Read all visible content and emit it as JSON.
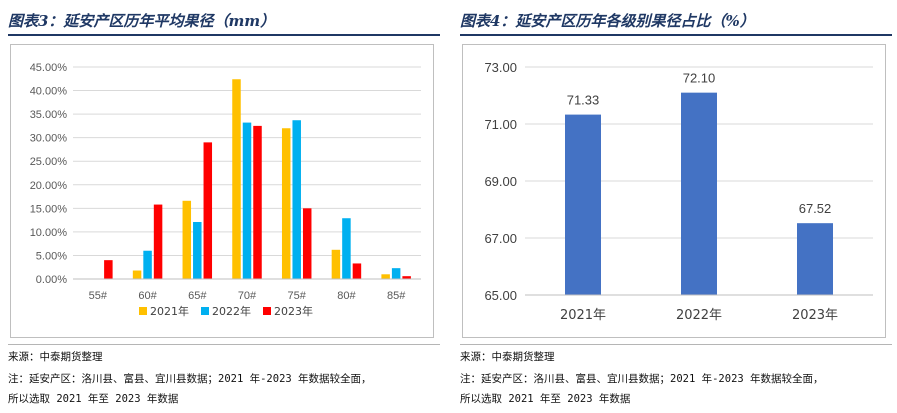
{
  "left": {
    "title": "图表3：延安产区历年平均果径（mm）",
    "source": "来源：中泰期货整理",
    "note1": "注：延安产区：洛川县、富县、宜川县数据；2021 年-2023 年数据较全面，",
    "note2": "所以选取 2021 年至 2023 年数据"
  },
  "right": {
    "title": "图表4：延安产区历年各级别果径占比（%）",
    "source": "来源：中泰期货整理",
    "note1": "注：延安产区：洛川县、富县、宜川县数据；2021 年-2023 年数据较全面，",
    "note2": "所以选取 2021 年至 2023 年数据"
  },
  "chart_data": [
    {
      "type": "bar",
      "categories": [
        "55#",
        "60#",
        "65#",
        "70#",
        "75#",
        "80#",
        "85#"
      ],
      "series": [
        {
          "name": "2021年",
          "color": "#ffc000",
          "values": [
            0.0,
            1.8,
            16.6,
            42.4,
            32.0,
            6.2,
            1.0
          ]
        },
        {
          "name": "2022年",
          "color": "#00b0f0",
          "values": [
            0.0,
            6.0,
            12.1,
            33.2,
            33.7,
            12.9,
            2.3
          ]
        },
        {
          "name": "2023年",
          "color": "#ff0000",
          "values": [
            4.0,
            15.8,
            29.0,
            32.5,
            15.0,
            3.3,
            0.6
          ]
        }
      ],
      "ylim": [
        0,
        45
      ],
      "yticks": [
        "0.00%",
        "5.00%",
        "10.00%",
        "15.00%",
        "20.00%",
        "25.00%",
        "30.00%",
        "35.00%",
        "40.00%",
        "45.00%"
      ],
      "legend_position": "bottom",
      "grid": true
    },
    {
      "type": "bar",
      "categories": [
        "2021年",
        "2022年",
        "2023年"
      ],
      "values": [
        71.33,
        72.1,
        67.52
      ],
      "data_labels": [
        "71.33",
        "72.10",
        "67.52"
      ],
      "color": "#4472c4",
      "ylim": [
        65,
        73
      ],
      "yticks": [
        "65.00",
        "67.00",
        "69.00",
        "71.00",
        "73.00"
      ],
      "grid": true
    }
  ]
}
